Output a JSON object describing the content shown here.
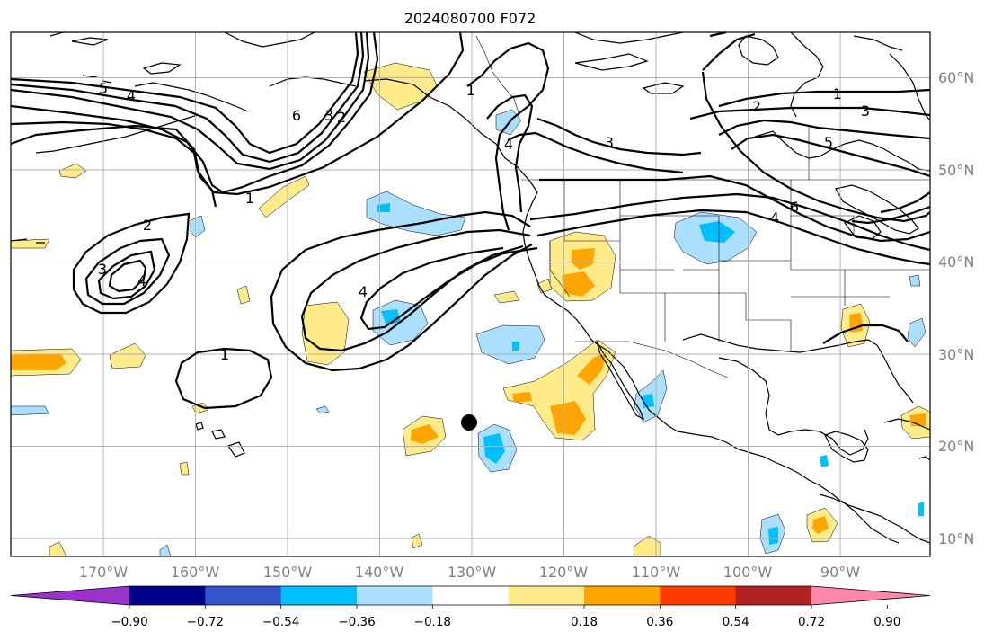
{
  "title": "2024080700 F072",
  "map": {
    "lon_ticks": [
      "170°W",
      "160°W",
      "150°W",
      "140°W",
      "130°W",
      "120°W",
      "110°W",
      "100°W",
      "90°W"
    ],
    "lat_ticks": [
      "60°N",
      "50°N",
      "40°N",
      "30°N",
      "20°N",
      "10°N"
    ],
    "gridlines": true,
    "contour_labels": [
      "5",
      "4",
      "6",
      "3",
      "2",
      "1",
      "1",
      "4",
      "3",
      "1",
      "2",
      "3",
      "5",
      "6",
      "4",
      "2",
      "3",
      "4",
      "1",
      "4"
    ],
    "marker": "filled-circle"
  },
  "colorbar": {
    "ticks": [
      "−0.90",
      "−0.72",
      "−0.54",
      "−0.36",
      "−0.18",
      "0.18",
      "0.36",
      "0.54",
      "0.72",
      "0.90"
    ],
    "colors": [
      "#9933cc",
      "#00008b",
      "#3355cc",
      "#00bfff",
      "#aadfff",
      "#ffffff",
      "#ffeb8a",
      "#ffa500",
      "#ff3c00",
      "#b22222",
      "#ff88aa"
    ]
  }
}
